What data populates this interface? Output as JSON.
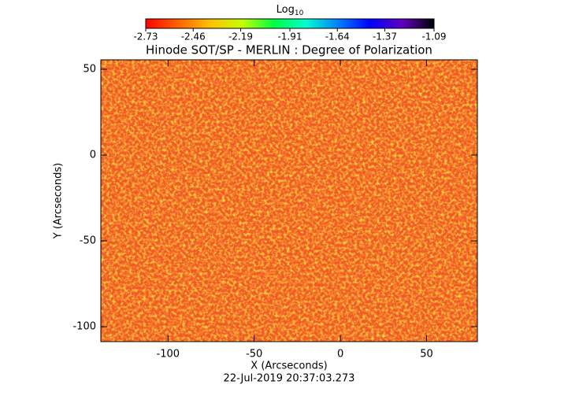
{
  "chart_data": {
    "type": "heatmap",
    "title": "Hinode SOT/SP - MERLIN : Degree of Polarization",
    "x_label": "X (Arcseconds)",
    "y_label": "Y (Arcseconds)",
    "annotation": "22-Jul-2019 20:37:03.273",
    "xlim": [
      -139,
      79.5
    ],
    "ylim": [
      -108.7,
      55.5
    ],
    "xticks": [
      -100,
      -50,
      0,
      50
    ],
    "yticks": [
      -100,
      -50,
      0,
      50
    ],
    "colorbar": {
      "title": "Log",
      "title_sub": "10",
      "lim": [
        -2.73,
        -1.09
      ],
      "ticks": [
        -2.73,
        -2.46,
        -2.19,
        -1.91,
        -1.64,
        -1.37,
        -1.09
      ],
      "colormap": [
        "#ff0000",
        "#ff6000",
        "#ffc000",
        "#c8ff00",
        "#00ff40",
        "#00ffd0",
        "#0080ff",
        "#0000ff",
        "#6000c0",
        "#000000"
      ]
    }
  }
}
